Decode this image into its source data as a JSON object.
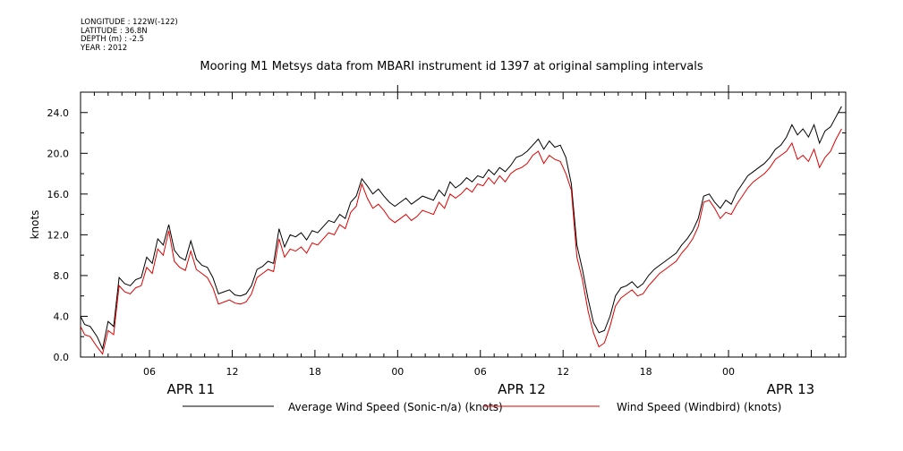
{
  "header": {
    "meta_lines": [
      "LONGITUDE : 122W(-122)",
      "LATITUDE : 36.8N",
      "DEPTH (m) : -2.5",
      "YEAR : 2012"
    ],
    "title": "Mooring M1 Metsys data from MBARI instrument id 1397 at original sampling intervals"
  },
  "colors": {
    "average_wind": "#000000",
    "windbird": "#e00000",
    "axes": "#000000"
  },
  "chart_data": {
    "type": "line",
    "title": "Mooring M1 Metsys data from MBARI instrument id 1397 at original sampling intervals",
    "xlabel": "",
    "ylabel": "knots",
    "xlim_hours": [
      1,
      56.5
    ],
    "ylim": [
      0,
      26
    ],
    "grid": false,
    "legend_position": "bottom",
    "x_tick_labels": [
      {
        "hour": 6,
        "label": "06"
      },
      {
        "hour": 12,
        "label": "12"
      },
      {
        "hour": 18,
        "label": "18"
      },
      {
        "hour": 24,
        "label": "00"
      },
      {
        "hour": 30,
        "label": "06"
      },
      {
        "hour": 36,
        "label": "12"
      },
      {
        "hour": 42,
        "label": "18"
      },
      {
        "hour": 48,
        "label": "00"
      }
    ],
    "date_labels": [
      {
        "hour": 9,
        "label": "APR 11"
      },
      {
        "hour": 33,
        "label": "APR 12"
      },
      {
        "hour": 52.5,
        "label": "APR 13"
      }
    ],
    "y_ticks": [
      {
        "value": 0,
        "label": "0.0"
      },
      {
        "value": 4,
        "label": "4.0"
      },
      {
        "value": 8,
        "label": "8.0"
      },
      {
        "value": 12,
        "label": "12.0"
      },
      {
        "value": 16,
        "label": "16.0"
      },
      {
        "value": 20,
        "label": "20.0"
      },
      {
        "value": 24,
        "label": "24.0"
      }
    ],
    "series": [
      {
        "name": "Average Wind Speed (Sonic-n/a) (knots)",
        "color": "#000000",
        "x": [
          1.0,
          1.3,
          1.7,
          2.2,
          2.6,
          3.0,
          3.4,
          3.8,
          4.2,
          4.6,
          5.0,
          5.4,
          5.8,
          6.2,
          6.6,
          7.0,
          7.4,
          7.8,
          8.2,
          8.6,
          9.0,
          9.4,
          9.8,
          10.2,
          10.6,
          11.0,
          11.4,
          11.8,
          12.2,
          12.6,
          13.0,
          13.4,
          13.8,
          14.2,
          14.6,
          15.0,
          15.4,
          15.8,
          16.2,
          16.6,
          17.0,
          17.4,
          17.8,
          18.2,
          18.6,
          19.0,
          19.4,
          19.8,
          20.2,
          20.6,
          21.0,
          21.4,
          21.8,
          22.2,
          22.6,
          23.0,
          23.4,
          23.8,
          24.2,
          24.6,
          25.0,
          25.4,
          25.8,
          26.2,
          26.6,
          27.0,
          27.4,
          27.8,
          28.2,
          28.6,
          29.0,
          29.4,
          29.8,
          30.2,
          30.6,
          31.0,
          31.4,
          31.8,
          32.2,
          32.6,
          33.0,
          33.4,
          33.8,
          34.2,
          34.6,
          35.0,
          35.4,
          35.8,
          36.2,
          36.6,
          37.0,
          37.4,
          37.8,
          38.2,
          38.6,
          39.0,
          39.4,
          39.8,
          40.2,
          40.6,
          41.0,
          41.4,
          41.8,
          42.2,
          42.6,
          43.0,
          43.4,
          43.8,
          44.2,
          44.6,
          45.0,
          45.4,
          45.8,
          46.2,
          46.6,
          47.0,
          47.4,
          47.8,
          48.2,
          48.6,
          49.0,
          49.4,
          49.8,
          50.2,
          50.6,
          51.0,
          51.4,
          51.8,
          52.2,
          52.6,
          53.0,
          53.4,
          53.8,
          54.2,
          54.6,
          55.0,
          55.4,
          55.8,
          56.2
        ],
        "y": [
          4.0,
          3.2,
          3.0,
          2.0,
          0.8,
          3.5,
          3.0,
          7.8,
          7.2,
          7.0,
          7.6,
          7.8,
          9.8,
          9.2,
          11.6,
          11.0,
          13.0,
          10.5,
          9.8,
          9.5,
          11.4,
          9.6,
          9.0,
          8.8,
          7.8,
          6.2,
          6.4,
          6.6,
          6.1,
          6.0,
          6.2,
          7.0,
          8.6,
          8.9,
          9.4,
          9.2,
          12.6,
          10.8,
          12.0,
          11.8,
          12.2,
          11.5,
          12.4,
          12.2,
          12.8,
          13.4,
          13.2,
          14.0,
          13.6,
          15.2,
          15.8,
          17.5,
          16.8,
          16.0,
          16.5,
          15.8,
          15.2,
          14.8,
          15.2,
          15.6,
          15.0,
          15.4,
          15.8,
          15.6,
          15.4,
          16.4,
          15.8,
          17.2,
          16.6,
          17.0,
          17.6,
          17.2,
          17.8,
          17.6,
          18.4,
          17.9,
          18.6,
          18.2,
          18.8,
          19.6,
          19.8,
          20.2,
          20.8,
          21.4,
          20.4,
          21.2,
          20.6,
          20.8,
          19.6,
          17.0,
          11.0,
          8.6,
          5.8,
          3.4,
          2.4,
          2.6,
          4.0,
          6.0,
          6.8,
          7.0,
          7.4,
          6.8,
          7.2,
          8.0,
          8.6,
          9.0,
          9.4,
          9.8,
          10.2,
          11.0,
          11.6,
          12.4,
          13.6,
          15.8,
          16.0,
          15.2,
          14.6,
          15.4,
          15.0,
          16.2,
          17.0,
          17.8,
          18.2,
          18.6,
          19.0,
          19.6,
          20.4,
          20.8,
          21.6,
          22.8,
          21.8,
          22.4,
          21.6,
          22.8,
          21.0,
          22.2,
          22.6,
          23.6,
          24.6
        ]
      },
      {
        "name": "Wind Speed (Windbird) (knots)",
        "color": "#e00000",
        "x": [
          1.0,
          1.3,
          1.7,
          2.2,
          2.6,
          3.0,
          3.4,
          3.8,
          4.2,
          4.6,
          5.0,
          5.4,
          5.8,
          6.2,
          6.6,
          7.0,
          7.4,
          7.8,
          8.2,
          8.6,
          9.0,
          9.4,
          9.8,
          10.2,
          10.6,
          11.0,
          11.4,
          11.8,
          12.2,
          12.6,
          13.0,
          13.4,
          13.8,
          14.2,
          14.6,
          15.0,
          15.4,
          15.8,
          16.2,
          16.6,
          17.0,
          17.4,
          17.8,
          18.2,
          18.6,
          19.0,
          19.4,
          19.8,
          20.2,
          20.6,
          21.0,
          21.4,
          21.8,
          22.2,
          22.6,
          23.0,
          23.4,
          23.8,
          24.2,
          24.6,
          25.0,
          25.4,
          25.8,
          26.2,
          26.6,
          27.0,
          27.4,
          27.8,
          28.2,
          28.6,
          29.0,
          29.4,
          29.8,
          30.2,
          30.6,
          31.0,
          31.4,
          31.8,
          32.2,
          32.6,
          33.0,
          33.4,
          33.8,
          34.2,
          34.6,
          35.0,
          35.4,
          35.8,
          36.2,
          36.6,
          37.0,
          37.4,
          37.8,
          38.2,
          38.6,
          39.0,
          39.4,
          39.8,
          40.2,
          40.6,
          41.0,
          41.4,
          41.8,
          42.2,
          42.6,
          43.0,
          43.4,
          43.8,
          44.2,
          44.6,
          45.0,
          45.4,
          45.8,
          46.2,
          46.6,
          47.0,
          47.4,
          47.8,
          48.2,
          48.6,
          49.0,
          49.4,
          49.8,
          50.2,
          50.6,
          51.0,
          51.4,
          51.8,
          52.2,
          52.6,
          53.0,
          53.4,
          53.8,
          54.2,
          54.6,
          55.0,
          55.4,
          55.8,
          56.2
        ],
        "y": [
          3.0,
          2.2,
          2.0,
          1.0,
          0.3,
          2.6,
          2.2,
          7.0,
          6.4,
          6.2,
          6.8,
          7.0,
          8.8,
          8.2,
          10.6,
          10.0,
          12.4,
          9.4,
          8.8,
          8.5,
          10.4,
          8.6,
          8.2,
          7.8,
          6.8,
          5.2,
          5.4,
          5.6,
          5.3,
          5.2,
          5.4,
          6.2,
          7.8,
          8.2,
          8.6,
          8.4,
          11.6,
          9.8,
          10.6,
          10.4,
          10.8,
          10.2,
          11.2,
          11.0,
          11.6,
          12.2,
          12.0,
          13.0,
          12.6,
          14.2,
          14.8,
          17.0,
          15.6,
          14.6,
          15.0,
          14.4,
          13.6,
          13.2,
          13.6,
          14.0,
          13.4,
          13.8,
          14.4,
          14.2,
          14.0,
          15.2,
          14.6,
          16.0,
          15.6,
          16.0,
          16.6,
          16.2,
          17.0,
          16.8,
          17.6,
          17.0,
          17.8,
          17.2,
          18.0,
          18.4,
          18.6,
          19.0,
          19.8,
          20.2,
          19.0,
          19.8,
          19.4,
          19.2,
          18.0,
          16.4,
          9.8,
          7.6,
          4.6,
          2.4,
          1.0,
          1.4,
          3.0,
          5.0,
          5.8,
          6.2,
          6.6,
          6.0,
          6.2,
          7.0,
          7.6,
          8.2,
          8.6,
          9.0,
          9.4,
          10.2,
          10.8,
          11.6,
          12.8,
          15.2,
          15.4,
          14.6,
          13.6,
          14.2,
          14.0,
          15.0,
          15.8,
          16.6,
          17.2,
          17.6,
          18.0,
          18.6,
          19.4,
          19.8,
          20.2,
          21.0,
          19.4,
          19.8,
          19.2,
          20.4,
          18.6,
          19.6,
          20.2,
          21.4,
          22.4
        ]
      }
    ]
  }
}
